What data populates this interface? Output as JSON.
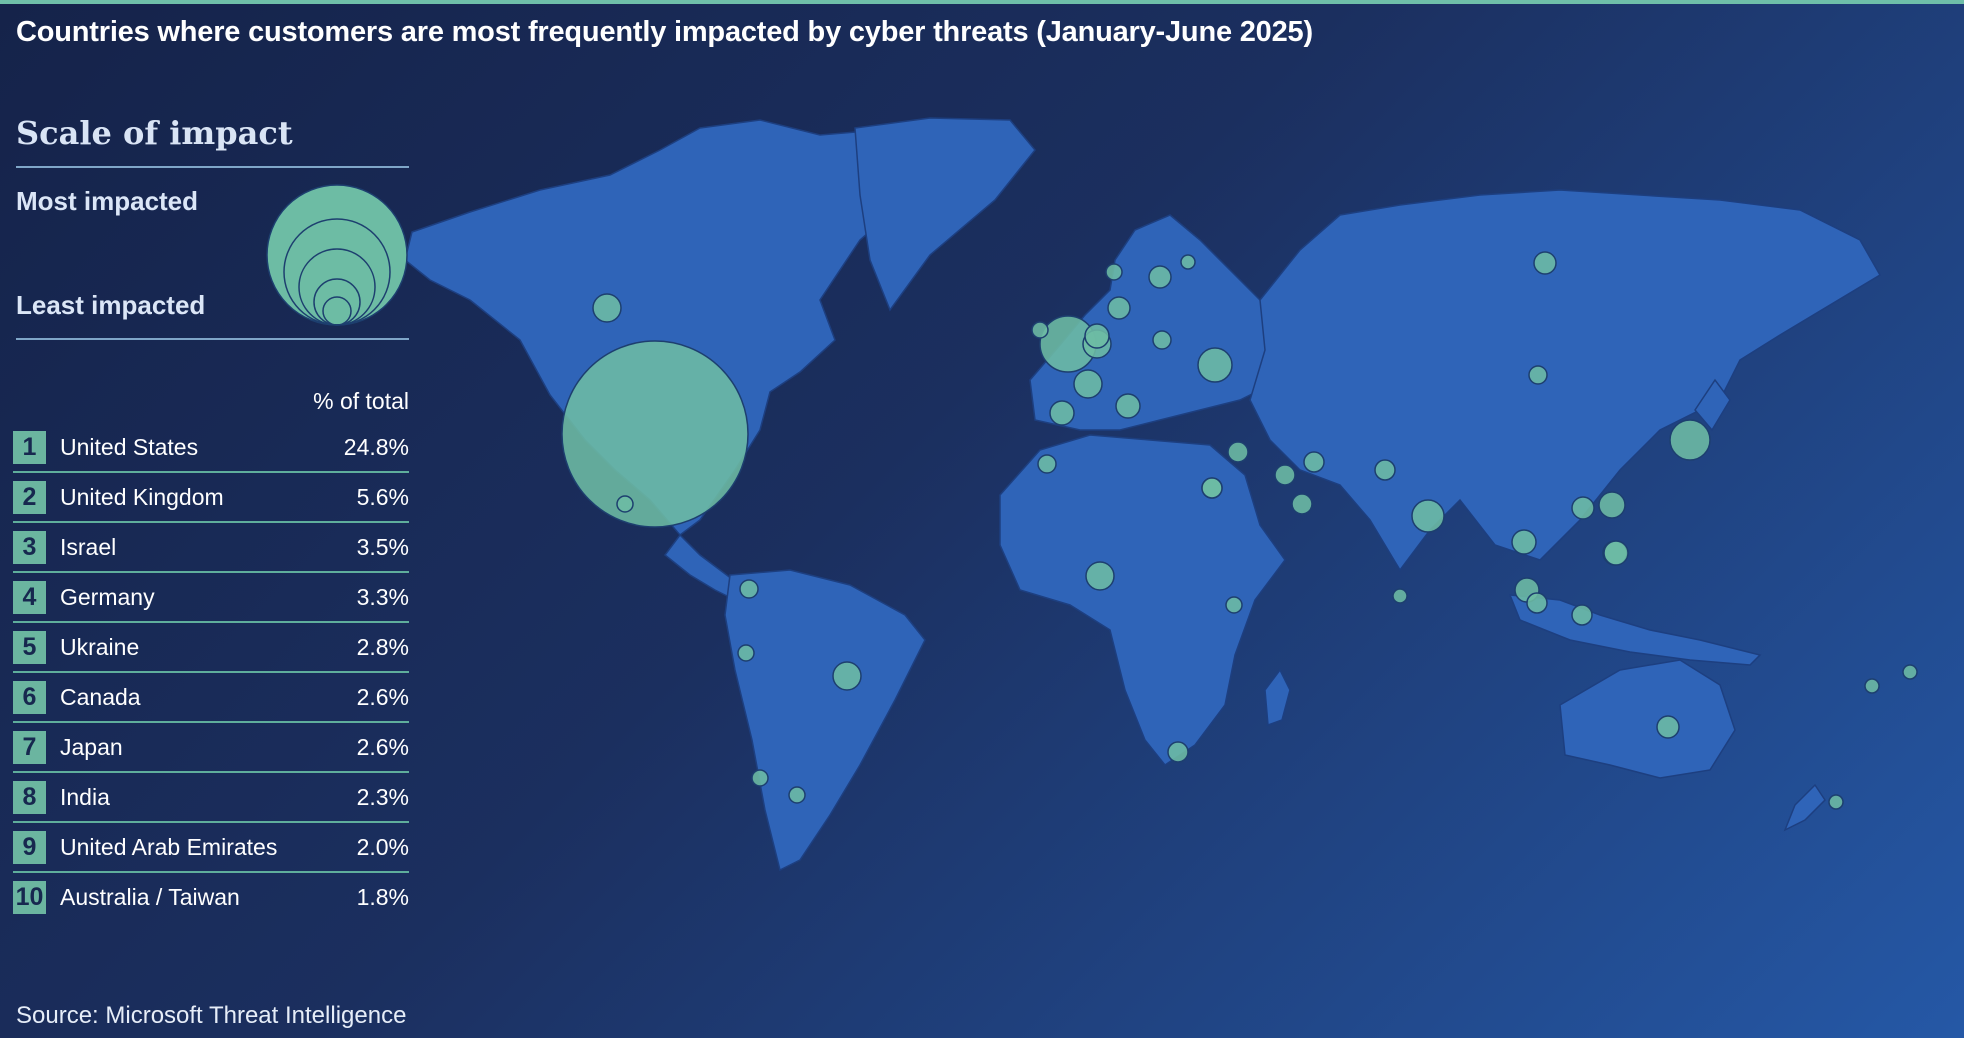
{
  "title": "Countries where customers are most frequently impacted by cyber threats  (January-June 2025)",
  "legend": {
    "heading": "Scale of impact",
    "most": "Most impacted",
    "least": "Least impacted"
  },
  "colors": {
    "background_dark": "#15234a",
    "background_light": "#2558a6",
    "land": "#2f64b8",
    "bubble": "#6dbca4",
    "accent_rule": "#5fae9c"
  },
  "table": {
    "header": "% of total",
    "rows": [
      {
        "rank": "1",
        "country": "United States",
        "pct": "24.8%"
      },
      {
        "rank": "2",
        "country": "United Kingdom",
        "pct": "5.6%"
      },
      {
        "rank": "3",
        "country": "Israel",
        "pct": "3.5%"
      },
      {
        "rank": "4",
        "country": "Germany",
        "pct": "3.3%"
      },
      {
        "rank": "5",
        "country": "Ukraine",
        "pct": "2.8%"
      },
      {
        "rank": "6",
        "country": "Canada",
        "pct": "2.6%"
      },
      {
        "rank": "7",
        "country": "Japan",
        "pct": "2.6%"
      },
      {
        "rank": "8",
        "country": "India",
        "pct": "2.3%"
      },
      {
        "rank": "9",
        "country": "United Arab Emirates",
        "pct": "2.0%"
      },
      {
        "rank": "10",
        "country": "Australia / Taiwan",
        "pct": "1.8%"
      }
    ]
  },
  "source": "Source: Microsoft Threat Intelligence"
}
